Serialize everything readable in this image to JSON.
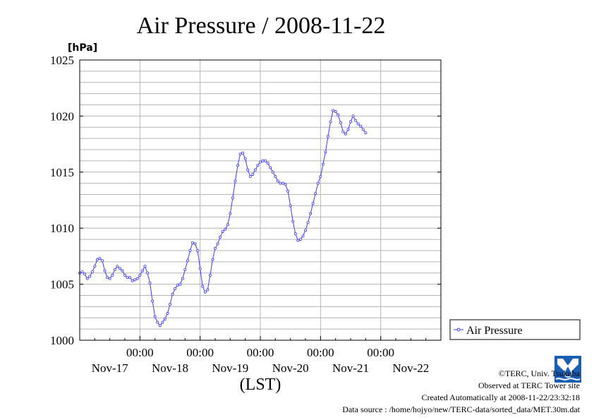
{
  "chart_data": {
    "type": "line",
    "title": "Air Pressure / 2008-11-22",
    "ylabel": "[hPa]",
    "xlabel": "(LST)",
    "ylim": [
      1000,
      1025
    ],
    "yticks": [
      1000,
      1005,
      1010,
      1015,
      1020,
      1025
    ],
    "xlim": [
      0,
      144
    ],
    "x_time_ticks": [
      {
        "x": 24,
        "label": "00:00"
      },
      {
        "x": 48,
        "label": "00:00"
      },
      {
        "x": 72,
        "label": "00:00"
      },
      {
        "x": 96,
        "label": "00:00"
      },
      {
        "x": 120,
        "label": "00:00"
      }
    ],
    "x_date_labels": [
      {
        "x": 12,
        "label": "Nov-17"
      },
      {
        "x": 36,
        "label": "Nov-18"
      },
      {
        "x": 60,
        "label": "Nov-19"
      },
      {
        "x": 84,
        "label": "Nov-20"
      },
      {
        "x": 108,
        "label": "Nov-21"
      },
      {
        "x": 132,
        "label": "Nov-22"
      }
    ],
    "grid": true,
    "legend_position": "right",
    "series": [
      {
        "name": "Air Pressure",
        "color": "#3b3bff",
        "points": [
          [
            0,
            1006
          ],
          [
            1,
            1006.1
          ],
          [
            2,
            1005.9
          ],
          [
            3,
            1005.5
          ],
          [
            4,
            1005.7
          ],
          [
            5,
            1006.1
          ],
          [
            6,
            1006.6
          ],
          [
            7,
            1007.2
          ],
          [
            8,
            1007.3
          ],
          [
            9,
            1007.1
          ],
          [
            10,
            1006.2
          ],
          [
            11,
            1005.6
          ],
          [
            12,
            1005.5
          ],
          [
            13,
            1005.8
          ],
          [
            14,
            1006.3
          ],
          [
            15,
            1006.6
          ],
          [
            16,
            1006.4
          ],
          [
            17,
            1006.2
          ],
          [
            18,
            1005.8
          ],
          [
            19,
            1005.6
          ],
          [
            20,
            1005.6
          ],
          [
            21,
            1005.3
          ],
          [
            22,
            1005.4
          ],
          [
            23,
            1005.5
          ],
          [
            24,
            1005.8
          ],
          [
            25,
            1006.2
          ],
          [
            26,
            1006.6
          ],
          [
            27,
            1006
          ],
          [
            28,
            1005.1
          ],
          [
            29,
            1003.5
          ],
          [
            30,
            1002.1
          ],
          [
            31,
            1001.6
          ],
          [
            32,
            1001.3
          ],
          [
            33,
            1001.6
          ],
          [
            34,
            1001.9
          ],
          [
            35,
            1002.4
          ],
          [
            36,
            1003.2
          ],
          [
            37,
            1004.1
          ],
          [
            38,
            1004.6
          ],
          [
            39,
            1004.9
          ],
          [
            40,
            1005
          ],
          [
            41,
            1005.5
          ],
          [
            42,
            1006.3
          ],
          [
            43,
            1007.1
          ],
          [
            44,
            1008
          ],
          [
            45,
            1008.7
          ],
          [
            46,
            1008.6
          ],
          [
            47,
            1008
          ],
          [
            48,
            1006.4
          ],
          [
            49,
            1004.8
          ],
          [
            50,
            1004.3
          ],
          [
            51,
            1004.5
          ],
          [
            52,
            1005.8
          ],
          [
            53,
            1007.2
          ],
          [
            54,
            1008.2
          ],
          [
            55,
            1008.6
          ],
          [
            56,
            1009.2
          ],
          [
            57,
            1009.7
          ],
          [
            58,
            1009.9
          ],
          [
            59,
            1010.3
          ],
          [
            60,
            1011.3
          ],
          [
            61,
            1012.7
          ],
          [
            62,
            1014.2
          ],
          [
            63,
            1015.6
          ],
          [
            64,
            1016.6
          ],
          [
            65,
            1016.7
          ],
          [
            66,
            1016.2
          ],
          [
            67,
            1015.2
          ],
          [
            68,
            1014.6
          ],
          [
            69,
            1014.8
          ],
          [
            70,
            1015.2
          ],
          [
            71,
            1015.6
          ],
          [
            72,
            1015.9
          ],
          [
            73,
            1016
          ],
          [
            74,
            1016
          ],
          [
            75,
            1015.8
          ],
          [
            76,
            1015.4
          ],
          [
            77,
            1015
          ],
          [
            78,
            1014.6
          ],
          [
            79,
            1014.2
          ],
          [
            80,
            1014
          ],
          [
            81,
            1014
          ],
          [
            82,
            1013.9
          ],
          [
            83,
            1013.3
          ],
          [
            84,
            1012
          ],
          [
            85,
            1010.6
          ],
          [
            86,
            1009.5
          ],
          [
            87,
            1008.9
          ],
          [
            88,
            1009
          ],
          [
            89,
            1009.3
          ],
          [
            90,
            1009.8
          ],
          [
            91,
            1010.5
          ],
          [
            92,
            1011.3
          ],
          [
            93,
            1012.2
          ],
          [
            94,
            1013.1
          ],
          [
            95,
            1014
          ],
          [
            96,
            1014.6
          ],
          [
            97,
            1015.7
          ],
          [
            98,
            1016.8
          ],
          [
            99,
            1018.2
          ],
          [
            100,
            1019.5
          ],
          [
            101,
            1020.5
          ],
          [
            102,
            1020.4
          ],
          [
            103,
            1020.1
          ],
          [
            104,
            1019.4
          ],
          [
            105,
            1018.6
          ],
          [
            106,
            1018.4
          ],
          [
            107,
            1018.8
          ],
          [
            108,
            1019.5
          ],
          [
            109,
            1020
          ],
          [
            110,
            1019.6
          ],
          [
            111,
            1019.3
          ],
          [
            112,
            1019.1
          ],
          [
            113,
            1018.8
          ],
          [
            114,
            1018.5
          ]
        ]
      }
    ]
  },
  "credits": {
    "copyright": "©TERC, Univ. Tsukuba",
    "observed": "Observed at TERC Tower site",
    "created": "Created Automatically at 2008-11-22/23:32:18",
    "source": "Data source : /home/hojyo/new/TERC-data/sorted_data/MET.30m.dat"
  },
  "logo": {
    "text": "TERC",
    "color": "#1a5fb4"
  }
}
